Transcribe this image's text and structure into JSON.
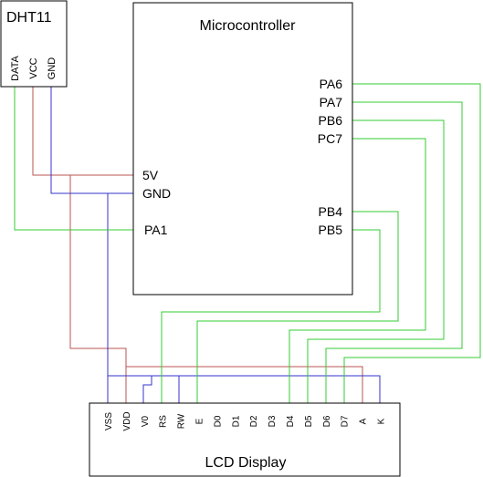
{
  "colors": {
    "outline": "#000000",
    "power": "#b85450",
    "ground": "#3333cc",
    "signal": "#33cc33"
  },
  "dht11": {
    "title": "DHT11",
    "pins": [
      "DATA",
      "VCC",
      "GND"
    ]
  },
  "microcontroller": {
    "title": "Microcontroller",
    "left_pins": [
      "5V",
      "GND",
      "PA1"
    ],
    "right_pins": [
      "PA6",
      "PA7",
      "PB6",
      "PC7",
      "PB4",
      "PB5"
    ]
  },
  "lcd": {
    "title": "LCD Display",
    "pins": [
      "VSS",
      "VDD",
      "V0",
      "RS",
      "RW",
      "E",
      "D0",
      "D1",
      "D2",
      "D3",
      "D4",
      "D5",
      "D6",
      "D7",
      "A",
      "K"
    ]
  }
}
